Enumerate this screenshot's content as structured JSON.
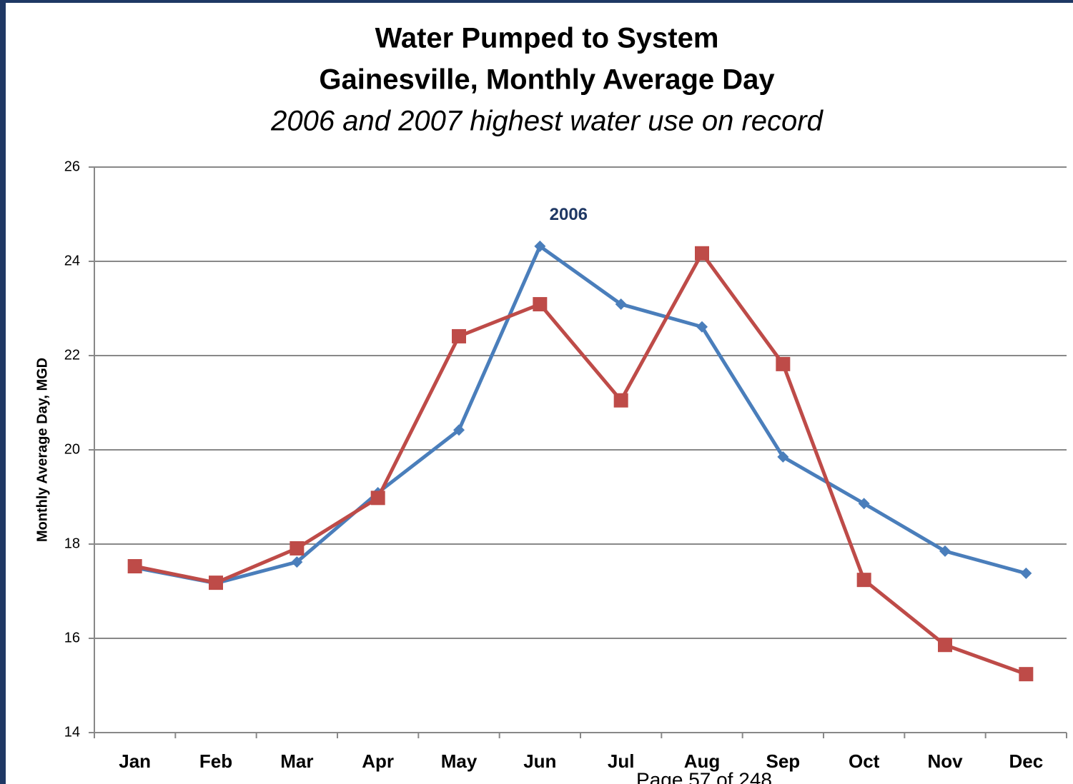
{
  "chart_data": {
    "type": "line",
    "title": "Water Pumped to System",
    "subtitle": "Gainesville, Monthly Average Day",
    "subtitle2": "2006 and 2007 highest water use on record",
    "ylabel": "Monthly Average Day, MGD",
    "footer": "Page 57 of 248",
    "categories": [
      "Jan",
      "Feb",
      "Mar",
      "Apr",
      "May",
      "Jun",
      "Jul",
      "Aug",
      "Sep",
      "Oct",
      "Nov",
      "Dec"
    ],
    "series": [
      {
        "name": "2006",
        "color": "#4a7ebb",
        "marker": "diamond",
        "values": [
          17.5,
          17.17,
          17.62,
          19.09,
          20.42,
          24.32,
          23.09,
          22.61,
          19.85,
          18.86,
          17.85,
          17.38
        ]
      },
      {
        "color": "#be4b48",
        "marker": "square",
        "values": [
          17.53,
          17.18,
          17.91,
          18.98,
          22.41,
          23.09,
          21.05,
          24.17,
          21.82,
          17.24,
          15.86,
          15.24
        ]
      }
    ],
    "ylim": [
      14,
      26
    ],
    "yticks": [
      14,
      16,
      18,
      20,
      22,
      24,
      26
    ],
    "grid": true
  }
}
